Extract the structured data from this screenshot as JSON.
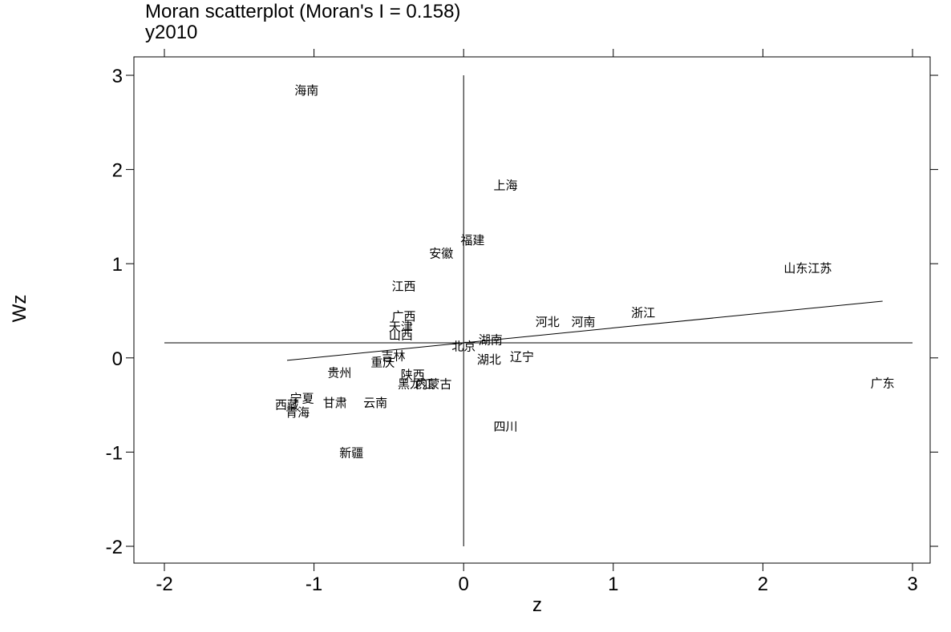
{
  "chart_data": {
    "type": "scatter",
    "title": "Moran scatterplot (Moran's I = 0.158)",
    "subtitle": "y2010",
    "xlabel": "z",
    "ylabel": "Wz",
    "xlim": [
      -2,
      3
    ],
    "ylim": [
      -2,
      3
    ],
    "x_ticks": [
      -2,
      -1,
      0,
      1,
      2,
      3
    ],
    "y_ticks": [
      -2,
      -1,
      0,
      1,
      2,
      3
    ],
    "x_tick_labels": [
      "-2",
      "-1",
      "0",
      "1",
      "2",
      "3"
    ],
    "y_tick_labels": [
      "-2",
      "-1",
      "0",
      "1",
      "2",
      "3"
    ],
    "grid": false,
    "reference_lines": {
      "vertical_x": 0,
      "horizontal_y": 0.16
    },
    "regression_line": {
      "x_start": -1.18,
      "x_end": 2.8,
      "intercept": 0.16,
      "slope": 0.158
    },
    "points": [
      {
        "label": "海南",
        "x": -1.05,
        "y": 2.84
      },
      {
        "label": "上海",
        "x": 0.28,
        "y": 1.83
      },
      {
        "label": "福建",
        "x": 0.06,
        "y": 1.25
      },
      {
        "label": "安徽",
        "x": -0.15,
        "y": 1.11
      },
      {
        "label": "山东江苏",
        "x": 2.3,
        "y": 0.95
      },
      {
        "label": "江西",
        "x": -0.4,
        "y": 0.76
      },
      {
        "label": "浙江",
        "x": 1.2,
        "y": 0.48
      },
      {
        "label": "广西",
        "x": -0.4,
        "y": 0.44
      },
      {
        "label": "河北",
        "x": 0.56,
        "y": 0.38
      },
      {
        "label": "河南",
        "x": 0.8,
        "y": 0.38
      },
      {
        "label": "天津",
        "x": -0.42,
        "y": 0.33
      },
      {
        "label": "山西",
        "x": -0.42,
        "y": 0.24
      },
      {
        "label": "湖南",
        "x": 0.18,
        "y": 0.19
      },
      {
        "label": "北京",
        "x": 0.0,
        "y": 0.12
      },
      {
        "label": "吉林",
        "x": -0.47,
        "y": 0.02
      },
      {
        "label": "辽宁",
        "x": 0.39,
        "y": 0.01
      },
      {
        "label": "湖北",
        "x": 0.17,
        "y": -0.02
      },
      {
        "label": "重庆",
        "x": -0.54,
        "y": -0.05
      },
      {
        "label": "贵州",
        "x": -0.83,
        "y": -0.16
      },
      {
        "label": "陕西",
        "x": -0.34,
        "y": -0.18
      },
      {
        "label": "黑龙江",
        "x": -0.32,
        "y": -0.28
      },
      {
        "label": "内蒙古",
        "x": -0.2,
        "y": -0.28
      },
      {
        "label": "广东",
        "x": 2.8,
        "y": -0.27
      },
      {
        "label": "宁夏",
        "x": -1.08,
        "y": -0.43
      },
      {
        "label": "甘肃",
        "x": -0.86,
        "y": -0.48
      },
      {
        "label": "云南",
        "x": -0.59,
        "y": -0.48
      },
      {
        "label": "西藏",
        "x": -1.18,
        "y": -0.5
      },
      {
        "label": "青海",
        "x": -1.11,
        "y": -0.58
      },
      {
        "label": "四川",
        "x": 0.28,
        "y": -0.73
      },
      {
        "label": "新疆",
        "x": -0.75,
        "y": -1.01
      }
    ]
  }
}
